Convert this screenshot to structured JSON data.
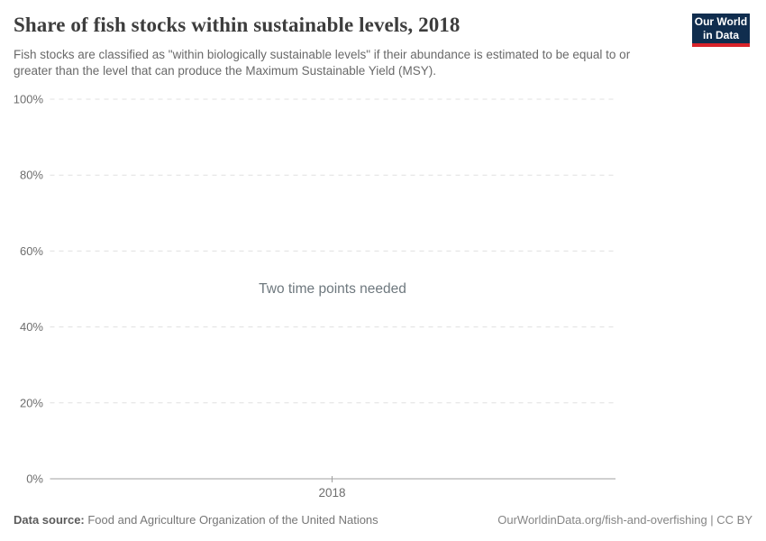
{
  "header": {
    "title": "Share of fish stocks within sustainable levels, 2018",
    "subtitle": "Fish stocks are classified as \"within biologically sustainable levels\" if their abundance is estimated to be equal to or greater than the level that can produce the Maximum Sustainable Yield (MSY)."
  },
  "logo": {
    "line1": "Our World",
    "line2": "in Data",
    "bg_color": "#102d4e",
    "accent_color": "#d8232a"
  },
  "chart_data": {
    "type": "line",
    "title": "Share of fish stocks within sustainable levels, 2018",
    "series": [],
    "x": [
      "2018"
    ],
    "xtick_labels": [
      "2018"
    ],
    "yticks": [
      0,
      20,
      40,
      60,
      80,
      100
    ],
    "ytick_suffix": "%",
    "ylim": [
      0,
      100
    ],
    "grid": "horizontal-dashed",
    "legend": "none",
    "empty_state_message": "Two time points needed"
  },
  "footer": {
    "source_label": "Data source:",
    "source_value": " Food and Agriculture Organization of the United Nations",
    "attribution": "OurWorldinData.org/fish-and-overfishing | CC BY"
  },
  "colors": {
    "title_text": "#3d3d3d",
    "subtitle_text": "#696969",
    "tick_label": "#6e6e6e",
    "gridline": "#e0e0e0",
    "axis_line": "#a0a0a0",
    "empty_message": "#6e787e"
  }
}
